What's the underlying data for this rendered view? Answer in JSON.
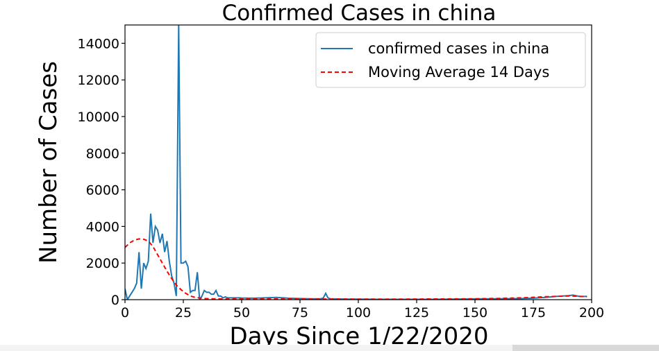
{
  "chart_data": {
    "type": "line",
    "title": "Confirmed Cases in china",
    "xlabel": "Days Since 1/22/2020",
    "ylabel": "Number of Cases",
    "xlim": [
      0,
      200
    ],
    "ylim": [
      0,
      15000
    ],
    "xticks": [
      0,
      25,
      50,
      75,
      100,
      125,
      150,
      175,
      200
    ],
    "yticks": [
      0,
      2000,
      4000,
      6000,
      8000,
      10000,
      12000,
      14000
    ],
    "grid": false,
    "legend_position": "top-right",
    "colors": {
      "confirmed": "#1f77b4",
      "moving_average": "#ff0000"
    },
    "series": [
      {
        "name": "confirmed cases in china",
        "style": "solid",
        "x": [
          0,
          1,
          2,
          3,
          4,
          5,
          6,
          7,
          8,
          9,
          10,
          11,
          12,
          13,
          14,
          15,
          16,
          17,
          18,
          19,
          20,
          21,
          22,
          23,
          24,
          25,
          26,
          27,
          28,
          29,
          30,
          31,
          32,
          33,
          34,
          35,
          36,
          37,
          38,
          39,
          40,
          41,
          42,
          43,
          44,
          45,
          46,
          47,
          48,
          49,
          50,
          55,
          60,
          65,
          70,
          75,
          80,
          84,
          85,
          86,
          87,
          88,
          90,
          95,
          100,
          110,
          120,
          130,
          140,
          150,
          160,
          170,
          175,
          180,
          185,
          190,
          192,
          195,
          198
        ],
        "y": [
          600,
          0,
          200,
          400,
          600,
          900,
          2600,
          600,
          2000,
          1700,
          2100,
          4700,
          3100,
          4000,
          3800,
          3100,
          3600,
          2600,
          3200,
          2100,
          1300,
          900,
          200,
          15100,
          2000,
          2000,
          2100,
          1800,
          400,
          500,
          500,
          1500,
          0,
          200,
          500,
          400,
          400,
          300,
          300,
          500,
          200,
          200,
          100,
          150,
          100,
          100,
          100,
          100,
          100,
          100,
          90,
          80,
          100,
          120,
          80,
          60,
          50,
          50,
          100,
          350,
          100,
          50,
          40,
          30,
          30,
          20,
          20,
          20,
          30,
          40,
          50,
          60,
          80,
          120,
          180,
          220,
          250,
          170,
          180
        ]
      },
      {
        "name": "Moving Average 14 Days",
        "style": "dashed",
        "x": [
          0,
          2,
          4,
          6,
          8,
          10,
          12,
          14,
          16,
          18,
          20,
          22,
          24,
          26,
          28,
          30,
          32,
          34,
          36,
          38,
          40,
          45,
          50,
          60,
          80,
          100,
          120,
          140,
          150,
          160,
          170,
          175,
          180,
          185,
          190,
          195,
          198
        ],
        "y": [
          2850,
          3100,
          3250,
          3320,
          3300,
          3200,
          2900,
          2450,
          2000,
          1550,
          1150,
          800,
          550,
          350,
          200,
          130,
          90,
          60,
          50,
          45,
          45,
          40,
          40,
          40,
          35,
          30,
          30,
          40,
          50,
          70,
          100,
          130,
          160,
          180,
          200,
          180,
          160
        ]
      }
    ]
  }
}
